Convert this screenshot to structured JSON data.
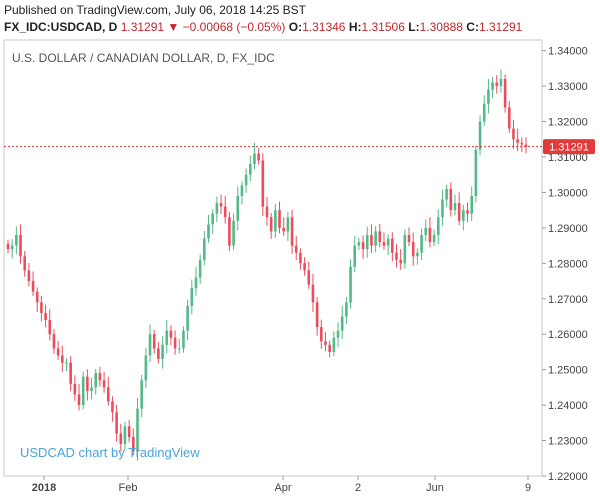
{
  "header": {
    "published_line": "Published on TradingView.com, July 06, 2018 14:25 BST",
    "symbol": "FX_IDC:USDCAD, D",
    "last_price": "1.31291",
    "change_arrow": "▼",
    "change": "−0.00068 (−0.05%)",
    "o_label": "O:",
    "o_value": "1.31346",
    "h_label": "H:",
    "h_value": "1.31506",
    "l_label": "L:",
    "l_value": "1.30888",
    "c_label": "C:",
    "c_value": "1.31291"
  },
  "chart_title": "U.S. DOLLAR / CANADIAN DOLLAR, D, FX_IDC",
  "watermark": "USDCAD chart by TradingView",
  "price_tag": "1.31291",
  "colors": {
    "up": "#53b987",
    "down": "#eb4d5c",
    "last_line": "#e03030",
    "tag_bg": "#e03a3a"
  },
  "chart_data": {
    "type": "candlestick",
    "symbol": "USDCAD",
    "interval": "D",
    "ylim": [
      1.22,
      1.343
    ],
    "y_ticks": [
      "1.22000",
      "1.23000",
      "1.24000",
      "1.25000",
      "1.26000",
      "1.27000",
      "1.28000",
      "1.29000",
      "1.30000",
      "1.31000",
      "1.32000",
      "1.33000",
      "1.34000"
    ],
    "x_ticks": [
      "2018",
      "Feb",
      "Apr",
      "2",
      "Jun",
      "9"
    ],
    "last_value": 1.31291,
    "closes": [
      1.284,
      1.285,
      1.288,
      1.282,
      1.278,
      1.275,
      1.272,
      1.269,
      1.266,
      1.264,
      1.26,
      1.256,
      1.254,
      1.252,
      1.252,
      1.246,
      1.243,
      1.24,
      1.248,
      1.244,
      1.245,
      1.249,
      1.247,
      1.245,
      1.241,
      1.238,
      1.232,
      1.229,
      1.234,
      1.231,
      1.227,
      1.239,
      1.247,
      1.254,
      1.26,
      1.256,
      1.253,
      1.257,
      1.261,
      1.259,
      1.256,
      1.256,
      1.261,
      1.268,
      1.273,
      1.276,
      1.281,
      1.287,
      1.291,
      1.294,
      1.297,
      1.296,
      1.293,
      1.285,
      1.292,
      1.299,
      1.302,
      1.305,
      1.308,
      1.311,
      1.309,
      1.296,
      1.293,
      1.289,
      1.295,
      1.29,
      1.289,
      1.293,
      1.285,
      1.283,
      1.28,
      1.278,
      1.274,
      1.269,
      1.262,
      1.258,
      1.257,
      1.255,
      1.259,
      1.261,
      1.265,
      1.269,
      1.279,
      1.285,
      1.286,
      1.284,
      1.288,
      1.285,
      1.289,
      1.286,
      1.285,
      1.287,
      1.283,
      1.281,
      1.28,
      1.288,
      1.286,
      1.282,
      1.283,
      1.288,
      1.29,
      1.286,
      1.288,
      1.293,
      1.298,
      1.301,
      1.295,
      1.297,
      1.292,
      1.295,
      1.294,
      1.299,
      1.312,
      1.32,
      1.325,
      1.329,
      1.331,
      1.33,
      1.332,
      1.324,
      1.318,
      1.315,
      1.314,
      1.3135,
      1.3129
    ]
  }
}
